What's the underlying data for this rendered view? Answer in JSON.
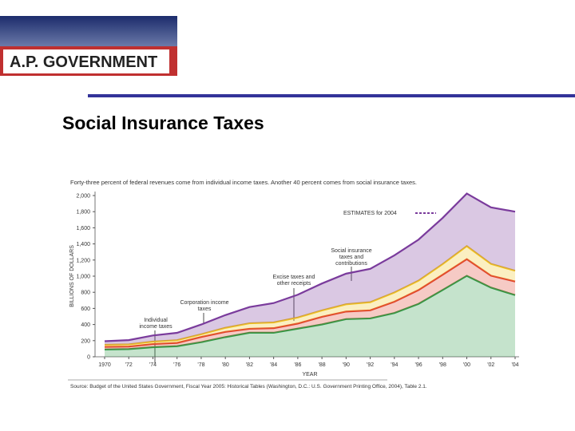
{
  "header": {
    "banner": "A.P. GOVERNMENT"
  },
  "slide": {
    "title": "Social Insurance Taxes"
  },
  "chart_data": {
    "type": "stacked-area",
    "subtitle": "Forty-three percent of federal revenues come from individual income taxes. Another 40 percent comes from social insurance taxes.",
    "y_label": "BILLIONS OF DOLLARS",
    "x_label": "YEAR",
    "source": "Source: Budget of the United States Government, Fiscal Year 2005: Historical Tables (Washington, D.C.: U.S. Government Printing Office, 2004), Table 2.1.",
    "x": [
      1970,
      1972,
      1974,
      1976,
      1978,
      1980,
      1982,
      1984,
      1986,
      1988,
      1990,
      1992,
      1994,
      1996,
      1998,
      2000,
      2002,
      2004
    ],
    "series": [
      {
        "name": "Individual income taxes",
        "color": "#2e9c47",
        "values": [
          90,
          95,
          119,
          131,
          181,
          244,
          298,
          298,
          349,
          401,
          467,
          476,
          543,
          656,
          829,
          1004,
          858,
          765
        ]
      },
      {
        "name": "Corporation income taxes",
        "color": "#e0402e",
        "values": [
          33,
          32,
          39,
          41,
          65,
          65,
          49,
          57,
          63,
          95,
          94,
          100,
          140,
          172,
          189,
          207,
          148,
          169
        ]
      },
      {
        "name": "Excise taxes and other receipts",
        "color": "#f2c420",
        "values": [
          26,
          27,
          30,
          34,
          33,
          50,
          68,
          71,
          75,
          79,
          90,
          101,
          114,
          116,
          132,
          161,
          146,
          133
        ]
      },
      {
        "name": "Social insurance taxes and contributions",
        "color": "#7a3b9c",
        "values": [
          44,
          53,
          76,
          91,
          121,
          158,
          202,
          240,
          283,
          334,
          380,
          414,
          461,
          509,
          572,
          653,
          701,
          733
        ]
      }
    ],
    "annotation": "ESTIMATES for 2004",
    "xlim": [
      1970,
      2004
    ],
    "xticks": [
      1970,
      {
        "value": 1972,
        "label": "'72"
      },
      {
        "value": 1974,
        "label": "'74"
      },
      {
        "value": 1976,
        "label": "'76"
      },
      {
        "value": 1978,
        "label": "'78"
      },
      {
        "value": 1980,
        "label": "'80"
      },
      {
        "value": 1982,
        "label": "'82"
      },
      {
        "value": 1984,
        "label": "'84"
      },
      {
        "value": 1986,
        "label": "'86"
      },
      {
        "value": 1988,
        "label": "'88"
      },
      {
        "value": 1990,
        "label": "'90"
      },
      {
        "value": 1992,
        "label": "'92"
      },
      {
        "value": 1994,
        "label": "'94"
      },
      {
        "value": 1996,
        "label": "'96"
      },
      {
        "value": 1998,
        "label": "'98"
      },
      {
        "value": 2000,
        "label": "'00"
      },
      {
        "value": 2002,
        "label": "'02"
      },
      {
        "value": 2004,
        "label": "'04"
      }
    ],
    "ylim": [
      0,
      2000
    ],
    "yticks": [
      0,
      200,
      400,
      600,
      800,
      {
        "value": 1000,
        "label": "1,000"
      },
      {
        "value": 1200,
        "label": "1,200"
      },
      {
        "value": 1400,
        "label": "1,400"
      },
      {
        "value": 1600,
        "label": "1,600"
      },
      {
        "value": 1800,
        "label": "1,800"
      },
      {
        "value": 2000,
        "label": "2,000"
      }
    ]
  }
}
